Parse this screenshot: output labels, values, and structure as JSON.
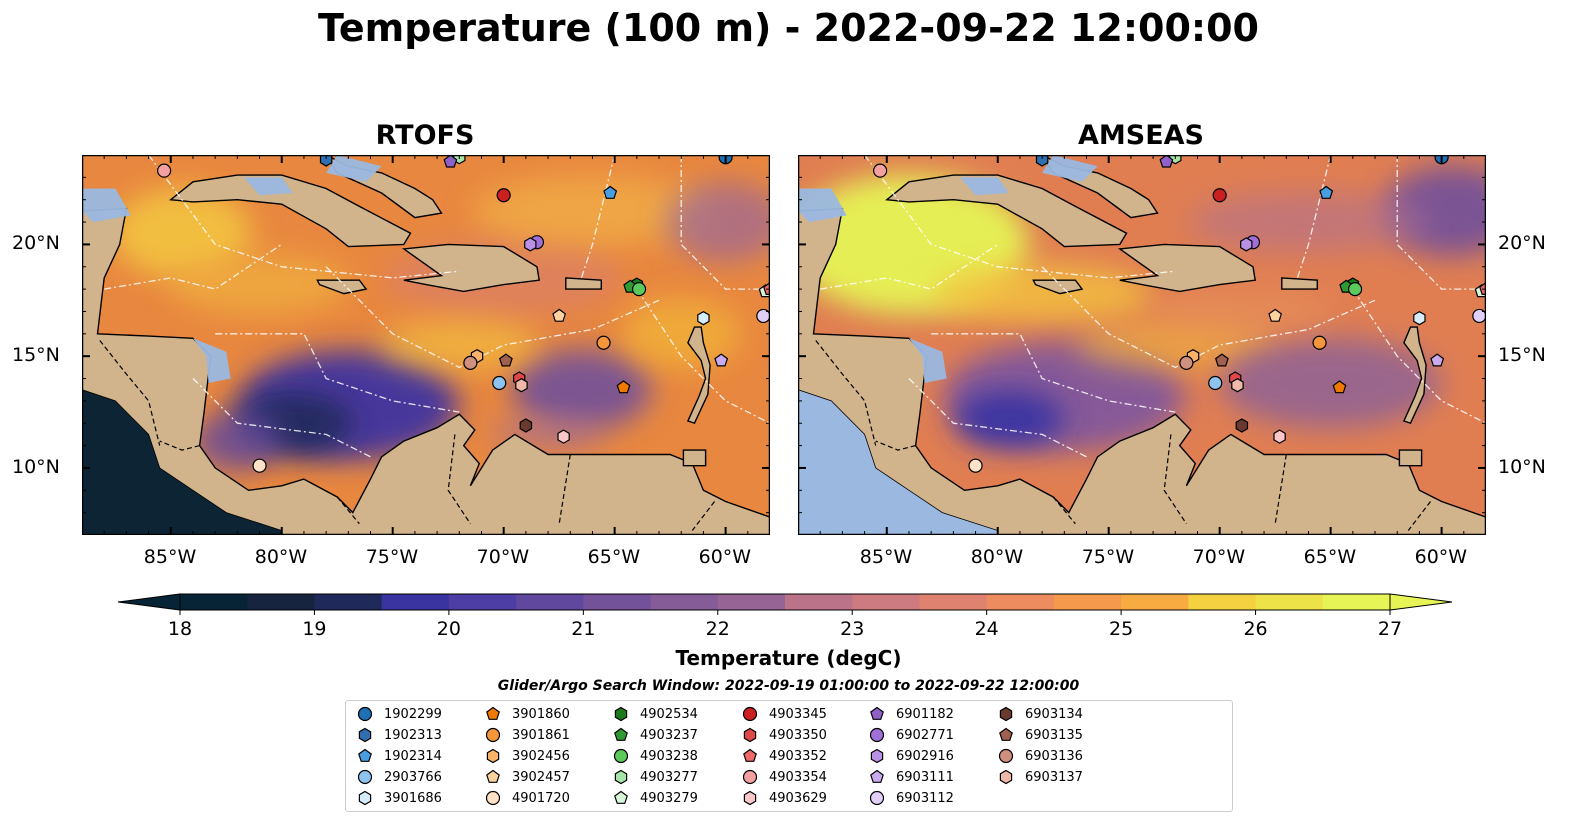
{
  "title": "Temperature (100 m) - 2022-09-22 12:00:00",
  "chart_data": [
    {
      "type": "heatmap",
      "panel": "RTOFS",
      "title": "RTOFS",
      "xlim": [
        -89,
        -58
      ],
      "ylim": [
        7,
        24
      ],
      "xticks": [
        "85°W",
        "80°W",
        "75°W",
        "70°W",
        "65°W",
        "60°W"
      ],
      "yticks": [
        "10°N",
        "15°N",
        "20°N"
      ],
      "colorbar": {
        "label": "Temperature (degC)",
        "min": 18,
        "max": 27,
        "ticks": [
          18,
          19,
          20,
          21,
          22,
          23,
          24,
          25,
          26,
          27
        ],
        "extend": "both"
      }
    },
    {
      "type": "heatmap",
      "panel": "AMSEAS",
      "title": "AMSEAS",
      "xlim": [
        -89,
        -58
      ],
      "ylim": [
        7,
        24
      ],
      "xticks": [
        "85°W",
        "80°W",
        "75°W",
        "70°W",
        "65°W",
        "60°W"
      ],
      "yticks": [
        "10°N",
        "15°N",
        "20°N"
      ],
      "colorbar": {
        "label": "Temperature (degC)",
        "min": 18,
        "max": 27,
        "ticks": [
          18,
          19,
          20,
          21,
          22,
          23,
          24,
          25,
          26,
          27
        ],
        "extend": "both"
      }
    }
  ],
  "colorbar": {
    "label": "Temperature (degC)",
    "ticks": [
      "18",
      "19",
      "20",
      "21",
      "22",
      "23",
      "24",
      "25",
      "26",
      "27"
    ],
    "colors": [
      "#072336",
      "#16243f",
      "#1f2a5a",
      "#2b2f86",
      "#3a34a1",
      "#4d3ea6",
      "#60489e",
      "#73529a",
      "#855c98",
      "#966596",
      "#a86d92",
      "#bb738a",
      "#cd7a80",
      "#df8370",
      "#ed8c5e",
      "#f59a4c",
      "#f8ab40",
      "#f8bd3a",
      "#f3d140",
      "#eee249",
      "#e6f455"
    ]
  },
  "legend": {
    "title": "Glider/Argo Search Window: 2022-09-19 01:00:00 to 2022-09-22 12:00:00",
    "floats": [
      {
        "id": "1902299",
        "marker": "circle",
        "color": "#1f6fb5",
        "lon": -60.0,
        "lat": 23.9
      },
      {
        "id": "1902313",
        "marker": "hexagon",
        "color": "#2f6fb0",
        "lon": -78.0,
        "lat": 23.8
      },
      {
        "id": "1902314",
        "marker": "pentagon",
        "color": "#4a9de0",
        "lon": -65.2,
        "lat": 22.3
      },
      {
        "id": "2903766",
        "marker": "circle",
        "color": "#8fc3ef",
        "lon": -70.2,
        "lat": 13.8
      },
      {
        "id": "3901686",
        "marker": "hexagon",
        "color": "#d7ecfb",
        "lon": -61.0,
        "lat": 16.7
      },
      {
        "id": "3901860",
        "marker": "pentagon",
        "color": "#f07a00",
        "lon": -64.6,
        "lat": 13.6
      },
      {
        "id": "3901861",
        "marker": "circle",
        "color": "#f5963a",
        "lon": -65.5,
        "lat": 15.6
      },
      {
        "id": "3902456",
        "marker": "hexagon",
        "color": "#f8b26a",
        "lon": -71.2,
        "lat": 15.0
      },
      {
        "id": "3902457",
        "marker": "pentagon",
        "color": "#fbd19e",
        "lon": -67.5,
        "lat": 16.8
      },
      {
        "id": "4901720",
        "marker": "circle",
        "color": "#fde2c8",
        "lon": -81.0,
        "lat": 10.1
      },
      {
        "id": "4902534",
        "marker": "hexagon",
        "color": "#1a7a1a",
        "lon": -64.0,
        "lat": 18.2
      },
      {
        "id": "4903237",
        "marker": "pentagon",
        "color": "#2f9a2f",
        "lon": -64.3,
        "lat": 18.1
      },
      {
        "id": "4903238",
        "marker": "circle",
        "color": "#5cc95c",
        "lon": -63.9,
        "lat": 18.0
      },
      {
        "id": "4903277",
        "marker": "hexagon",
        "color": "#a6e6a6",
        "lon": -72.0,
        "lat": 23.9
      },
      {
        "id": "4903279",
        "marker": "pentagon",
        "color": "#d8f5d8",
        "lon": -58.2,
        "lat": 17.9
      },
      {
        "id": "4903345",
        "marker": "circle",
        "color": "#cc2020",
        "lon": -70.0,
        "lat": 22.2
      },
      {
        "id": "4903350",
        "marker": "hexagon",
        "color": "#e04848",
        "lon": -69.3,
        "lat": 14.0
      },
      {
        "id": "4903352",
        "marker": "pentagon",
        "color": "#ee6868",
        "lon": -58.0,
        "lat": 18.0
      },
      {
        "id": "4903354",
        "marker": "circle",
        "color": "#f4a0a0",
        "lon": -85.3,
        "lat": 23.3
      },
      {
        "id": "4903629",
        "marker": "hexagon",
        "color": "#f9c7c7",
        "lon": -67.3,
        "lat": 11.4
      },
      {
        "id": "6901182",
        "marker": "pentagon",
        "color": "#8e60c8",
        "lon": -72.4,
        "lat": 23.7
      },
      {
        "id": "6902771",
        "marker": "circle",
        "color": "#a070d8",
        "lon": -68.5,
        "lat": 20.1
      },
      {
        "id": "6902916",
        "marker": "hexagon",
        "color": "#b890e4",
        "lon": -68.8,
        "lat": 20.0
      },
      {
        "id": "6903111",
        "marker": "pentagon",
        "color": "#c9aaee",
        "lon": -60.2,
        "lat": 14.8
      },
      {
        "id": "6903112",
        "marker": "circle",
        "color": "#e2cff7",
        "lon": -58.3,
        "lat": 16.8
      },
      {
        "id": "6903134",
        "marker": "hexagon",
        "color": "#6a3a30",
        "lon": -69.0,
        "lat": 11.9
      },
      {
        "id": "6903135",
        "marker": "pentagon",
        "color": "#a06050",
        "lon": -69.9,
        "lat": 14.8
      },
      {
        "id": "6903136",
        "marker": "circle",
        "color": "#d09080",
        "lon": -71.5,
        "lat": 14.7
      },
      {
        "id": "6903137",
        "marker": "hexagon",
        "color": "#efb8a8",
        "lon": -69.2,
        "lat": 13.7
      }
    ]
  }
}
